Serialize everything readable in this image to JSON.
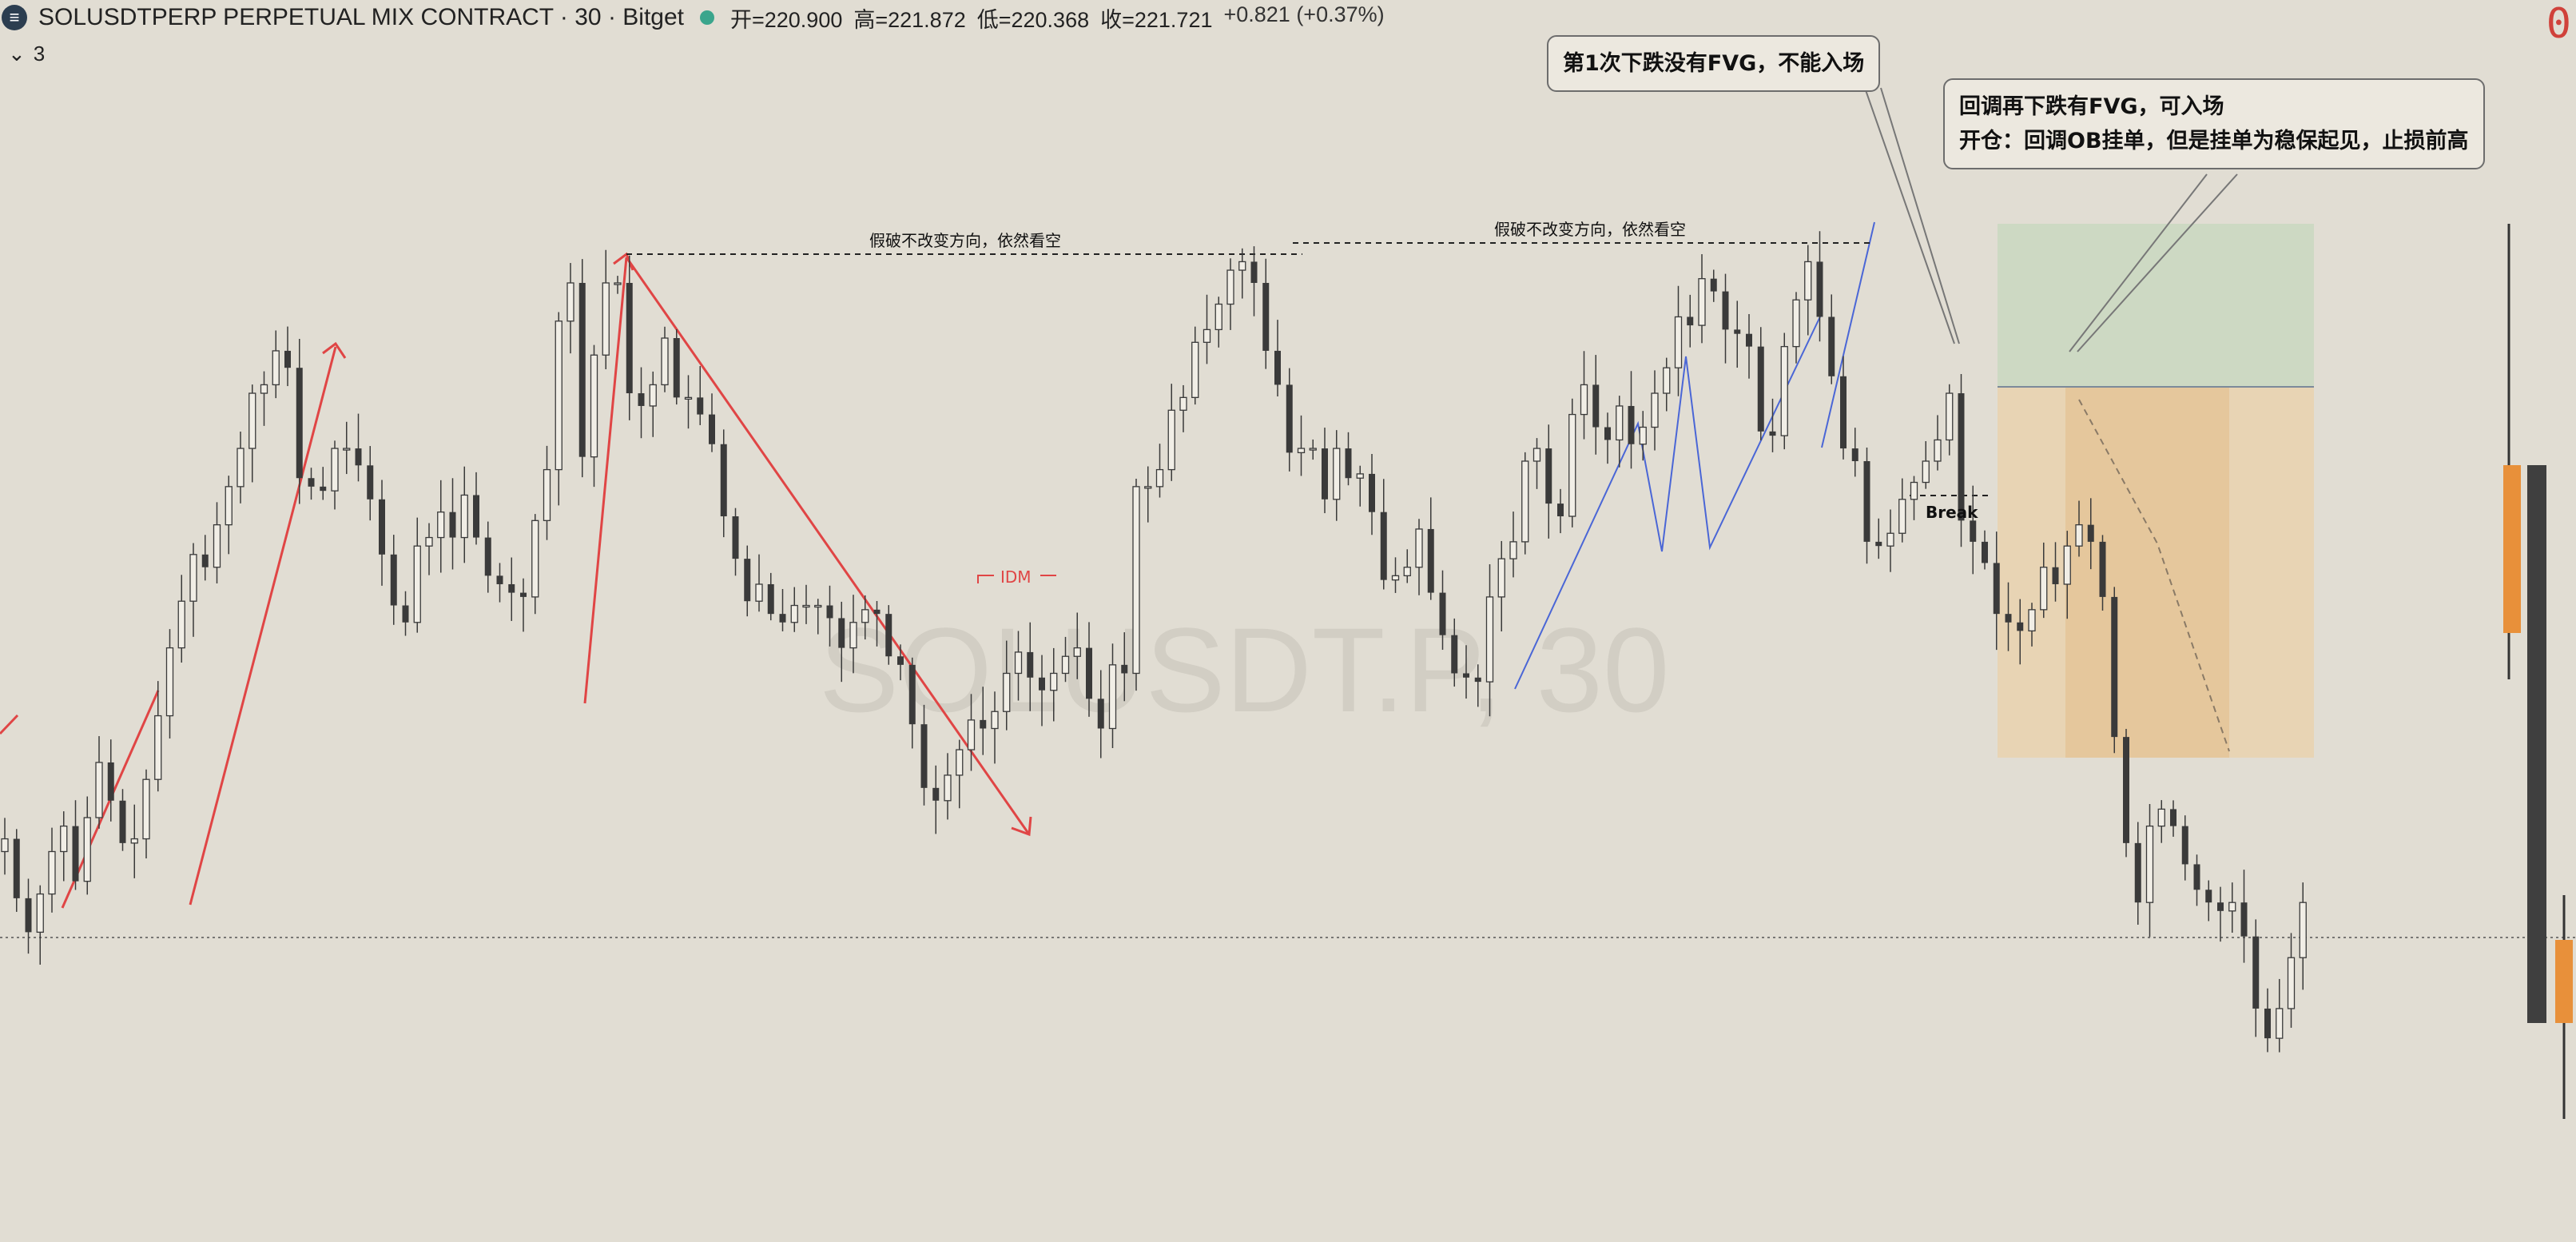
{
  "header": {
    "logo_glyph": "≡",
    "title": "SOLUSDTPERP PERPETUAL MIX CONTRACT · 30 · Bitget",
    "open": "开=220.900",
    "high": "高=221.872",
    "low": "低=220.368",
    "close": "收=221.721",
    "change": "+0.821 (+0.37%)"
  },
  "indicator_toggle": {
    "icon": "chevron-down-icon",
    "count": "3"
  },
  "corner_badge": "0",
  "watermark": "SOLUSDT.P, 30",
  "annotations": {
    "fake_break_1": "假破不改变方向，依然看空",
    "fake_break_2": "假破不改变方向，依然看空",
    "idm": "IDM",
    "break": "Break",
    "callout_first": "第1次下跌没有FVG，不能入场",
    "callout_second_line1": "回调再下跌有FVG，可入场",
    "callout_second_line2": "开仓：回调OB挂单，但是挂单为稳保起见，止损前高"
  },
  "colors": {
    "background": "#e1ddd3",
    "candle": "#3a3a3a",
    "red_structure": "#e04545",
    "blue_structure": "#4a66d6",
    "profit_zone": "#c9d8bf",
    "loss_zone": "#e6c79c",
    "volume_orange": "#e8903a"
  },
  "chart_data": {
    "type": "candlestick",
    "symbol": "SOLUSDTPERP",
    "timeframe": "30",
    "close_series": [
      212.0,
      210.6,
      209.8,
      210.7,
      211.7,
      212.3,
      211.0,
      212.5,
      213.8,
      212.9,
      211.9,
      212.0,
      213.4,
      214.9,
      216.5,
      217.6,
      218.7,
      218.4,
      219.4,
      220.3,
      221.2,
      222.5,
      222.7,
      223.5,
      223.1,
      220.5,
      220.3,
      220.2,
      221.2,
      221.2,
      220.8,
      220.0,
      218.7,
      217.5,
      217.1,
      218.9,
      219.1,
      219.7,
      219.1,
      220.1,
      219.1,
      218.2,
      218.0,
      217.8,
      217.7,
      219.5,
      220.7,
      224.2,
      225.1,
      221.0,
      223.4,
      225.1,
      225.1,
      222.5,
      222.2,
      222.7,
      223.8,
      222.4,
      222.4,
      222.0,
      221.3,
      219.6,
      218.6,
      217.6,
      218.0,
      217.3,
      217.1,
      217.5,
      217.5,
      217.5,
      217.2,
      216.5,
      217.1,
      217.4,
      217.3,
      216.3,
      216.1,
      214.7,
      213.2,
      212.9,
      213.5,
      214.1,
      214.8,
      214.6,
      215.0,
      215.9,
      216.4,
      215.8,
      215.5,
      215.9,
      216.3,
      216.5,
      215.3,
      214.6,
      216.1,
      215.9,
      220.3,
      220.3,
      220.7,
      222.1,
      222.4,
      223.7,
      224.0,
      224.6,
      225.4,
      225.6,
      225.1,
      223.5,
      222.7,
      221.1,
      221.2,
      221.2,
      220.0,
      221.2,
      220.5,
      220.6,
      219.7,
      218.1,
      218.2,
      218.4,
      219.3,
      217.8,
      216.8,
      215.9,
      215.8,
      215.7,
      217.7,
      218.6,
      219.0,
      220.9,
      221.2,
      219.9,
      219.6,
      222.0,
      222.7,
      221.7,
      221.4,
      222.2,
      221.3,
      221.7,
      222.5,
      223.1,
      224.3,
      224.1,
      225.2,
      224.9,
      224.0,
      223.9,
      223.6,
      221.6,
      221.5,
      223.6,
      224.7,
      225.6,
      224.3,
      222.9,
      221.2,
      220.9,
      219.0,
      218.9,
      219.2,
      220.0,
      220.4,
      220.9,
      221.4,
      222.5,
      219.5,
      219.0,
      218.5,
      217.3,
      217.1,
      216.9,
      217.4,
      218.4,
      218.0,
      218.9,
      219.4,
      219.0,
      217.7,
      214.4,
      211.9,
      210.5,
      212.3,
      212.7,
      212.3,
      211.4,
      210.8,
      210.5,
      210.3,
      210.5,
      209.7,
      208.0,
      207.3,
      208.0,
      209.2,
      210.5
    ],
    "annotated_levels": {
      "first_fake_break_high": 225.1,
      "second_fake_break_high": 225.6,
      "break_level": 221.6,
      "dotted_reference_line": 212.3
    },
    "position_zones": {
      "take_profit_zone": "green",
      "stop_zone": "orange"
    }
  }
}
